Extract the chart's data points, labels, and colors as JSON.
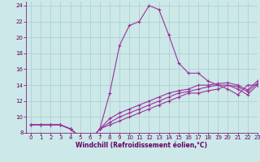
{
  "x": [
    0,
    1,
    2,
    3,
    4,
    5,
    6,
    7,
    8,
    9,
    10,
    11,
    12,
    13,
    14,
    15,
    16,
    17,
    18,
    19,
    20,
    21,
    22,
    23
  ],
  "line1": [
    9,
    9,
    9,
    9,
    8.5,
    7.5,
    7,
    8.5,
    13,
    19,
    21.5,
    22,
    24,
    23.5,
    20.3,
    16.8,
    15.5,
    15.5,
    14.5,
    14,
    13.5,
    12.8,
    14,
    14
  ],
  "line2": [
    9,
    9,
    9,
    9,
    8.5,
    7.5,
    7,
    8.5,
    9,
    9.5,
    10,
    10.5,
    11,
    11.5,
    12,
    12.5,
    13,
    13,
    13.3,
    13.5,
    14,
    13.5,
    12.8,
    14
  ],
  "line3": [
    9,
    9,
    9,
    9,
    8.5,
    7.5,
    7,
    8.5,
    9.3,
    10,
    10.5,
    11,
    11.5,
    12,
    12.5,
    13,
    13.2,
    13.5,
    13.8,
    14,
    14,
    13.8,
    13.2,
    14.2
  ],
  "line4": [
    9,
    9,
    9,
    9,
    8.5,
    7.5,
    7,
    8.5,
    9.8,
    10.5,
    11,
    11.5,
    12,
    12.5,
    13,
    13.3,
    13.5,
    14,
    14,
    14.2,
    14.3,
    14,
    13.4,
    14.5
  ],
  "xlim": [
    -0.5,
    23
  ],
  "ylim": [
    8,
    24.5
  ],
  "yticks": [
    8,
    10,
    12,
    14,
    16,
    18,
    20,
    22,
    24
  ],
  "xticks": [
    0,
    1,
    2,
    3,
    4,
    5,
    6,
    7,
    8,
    9,
    10,
    11,
    12,
    13,
    14,
    15,
    16,
    17,
    18,
    19,
    20,
    21,
    22,
    23
  ],
  "xlabel": "Windchill (Refroidissement éolien,°C)",
  "line_color": "#993399",
  "bg_color": "#cce8e8",
  "grid_color": "#aacccc",
  "title_color": "#660066",
  "tick_color": "#660066",
  "marker": "+",
  "linewidth": 0.8,
  "markersize": 3.5,
  "tick_fontsize": 5,
  "xlabel_fontsize": 5.5
}
